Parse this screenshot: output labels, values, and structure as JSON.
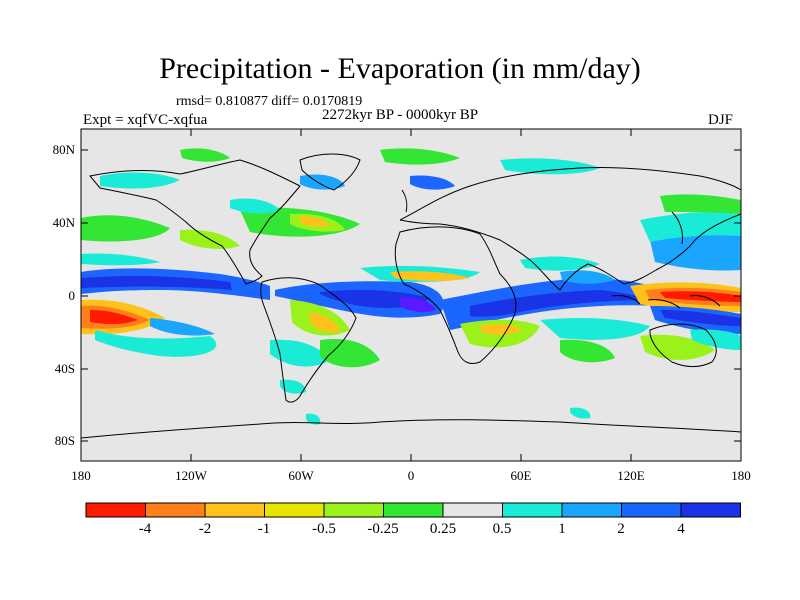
{
  "title": "Precipitation - Evaporation (in mm/day)",
  "stats": "rmsd= 0.810877 diff= 0.0170819",
  "period": "2272kyr BP - 0000kyr BP",
  "experiment": "Expt = xqfVC-xqfua",
  "season": "DJF",
  "y_ticks": [
    "80N",
    "40N",
    "0",
    "40S",
    "80S"
  ],
  "x_ticks": [
    "180",
    "120W",
    "60W",
    "0",
    "60E",
    "120E",
    "180"
  ],
  "colorbar": {
    "colors": [
      "#ff1a00",
      "#ff7f1a",
      "#ffc21a",
      "#e6e600",
      "#9bf21a",
      "#33e633",
      "#e6e6e6",
      "#1aebd6",
      "#1aa6ff",
      "#1a66ff",
      "#1a33e6",
      "#5a1aff"
    ],
    "labels": [
      "-4",
      "-2",
      "-1",
      "-0.5",
      "-0.25",
      "0.25",
      "0.5",
      "1",
      "2",
      "4"
    ]
  },
  "colors": {
    "land_bg": "#e6e6e6",
    "coast": "#000000"
  }
}
